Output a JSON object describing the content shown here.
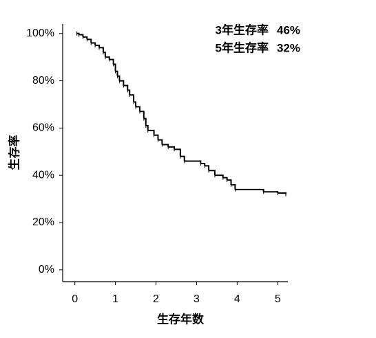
{
  "chart_data": {
    "type": "step",
    "y_label": "生存率",
    "x_label": "生存年数",
    "annotations": [
      {
        "label": "3年生存率",
        "value": "46%"
      },
      {
        "label": "5年生存率",
        "value": "32%"
      }
    ],
    "series": [
      {
        "name": "survival",
        "color": "#000000",
        "x": [
          0.05,
          0.1,
          0.2,
          0.3,
          0.4,
          0.5,
          0.6,
          0.7,
          0.75,
          0.85,
          0.95,
          1.0,
          1.05,
          1.1,
          1.2,
          1.3,
          1.35,
          1.45,
          1.5,
          1.6,
          1.7,
          1.75,
          1.8,
          1.95,
          2.05,
          2.15,
          2.3,
          2.45,
          2.6,
          2.7,
          3.1,
          3.2,
          3.3,
          3.45,
          3.65,
          3.75,
          3.85,
          3.95,
          4.65,
          5.0,
          5.2
        ],
        "values": [
          100,
          99.5,
          98.5,
          97.5,
          96,
          95,
          94,
          92,
          90,
          89,
          87,
          84,
          82,
          80,
          78,
          76,
          74,
          71,
          69,
          67,
          64,
          61,
          59,
          57,
          55,
          53,
          52,
          51,
          48,
          46,
          45,
          44,
          42,
          40,
          39,
          38,
          36,
          34,
          33,
          32.5,
          32
        ]
      }
    ],
    "xlim": [
      -0.3,
      5.25
    ],
    "xticks": [
      0,
      1,
      2,
      3,
      4,
      5
    ],
    "ylim": [
      -5,
      104
    ],
    "yticks": [
      {
        "value": 0,
        "label": "0%"
      },
      {
        "value": 20,
        "label": "20%"
      },
      {
        "value": 40,
        "label": "40%"
      },
      {
        "value": 60,
        "label": "60%"
      },
      {
        "value": 80,
        "label": "80%"
      },
      {
        "value": 100,
        "label": "100%"
      }
    ]
  }
}
